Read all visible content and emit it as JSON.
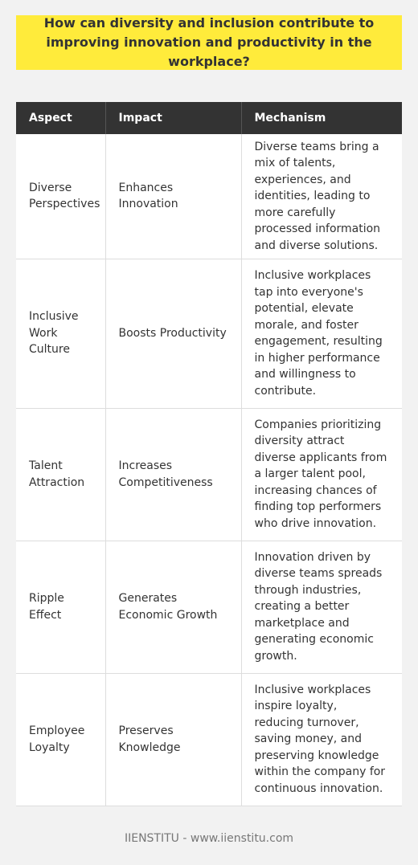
{
  "title": "How can diversity and inclusion contribute to improving innovation and productivity in the workplace?",
  "table": {
    "headers": [
      "Aspect",
      "Impact",
      "Mechanism"
    ],
    "rows": [
      {
        "aspect": "Diverse Perspectives",
        "impact": "Enhances Innovation",
        "mechanism": "Diverse teams bring a mix of talents, experiences, and identities, leading to more carefully processed information and diverse solutions."
      },
      {
        "aspect": "Inclusive Work Culture",
        "impact": "Boosts Productivity",
        "mechanism": "Inclusive workplaces tap into everyone's potential, elevate morale, and foster engagement, resulting in higher performance and willingness to contribute."
      },
      {
        "aspect": "Talent Attraction",
        "impact": "Increases Competitiveness",
        "mechanism": "Companies prioritizing diversity attract diverse applicants from a larger talent pool, increasing chances of finding top performers who drive innovation."
      },
      {
        "aspect": "Ripple Effect",
        "impact": "Generates Economic Growth",
        "mechanism": "Innovation driven by diverse teams spreads through industries, creating a better marketplace and generating economic growth."
      },
      {
        "aspect": "Employee Loyalty",
        "impact": "Preserves Knowledge",
        "mechanism": "Inclusive workplaces inspire loyalty, reducing turnover, saving money, and preserving knowledge within the company for continuous innovation."
      }
    ]
  },
  "footer": "IIENSTITU - www.iienstitu.com",
  "colors": {
    "title_background": "#ffeb3b",
    "header_background": "#333333",
    "page_background": "#f2f2f2"
  }
}
